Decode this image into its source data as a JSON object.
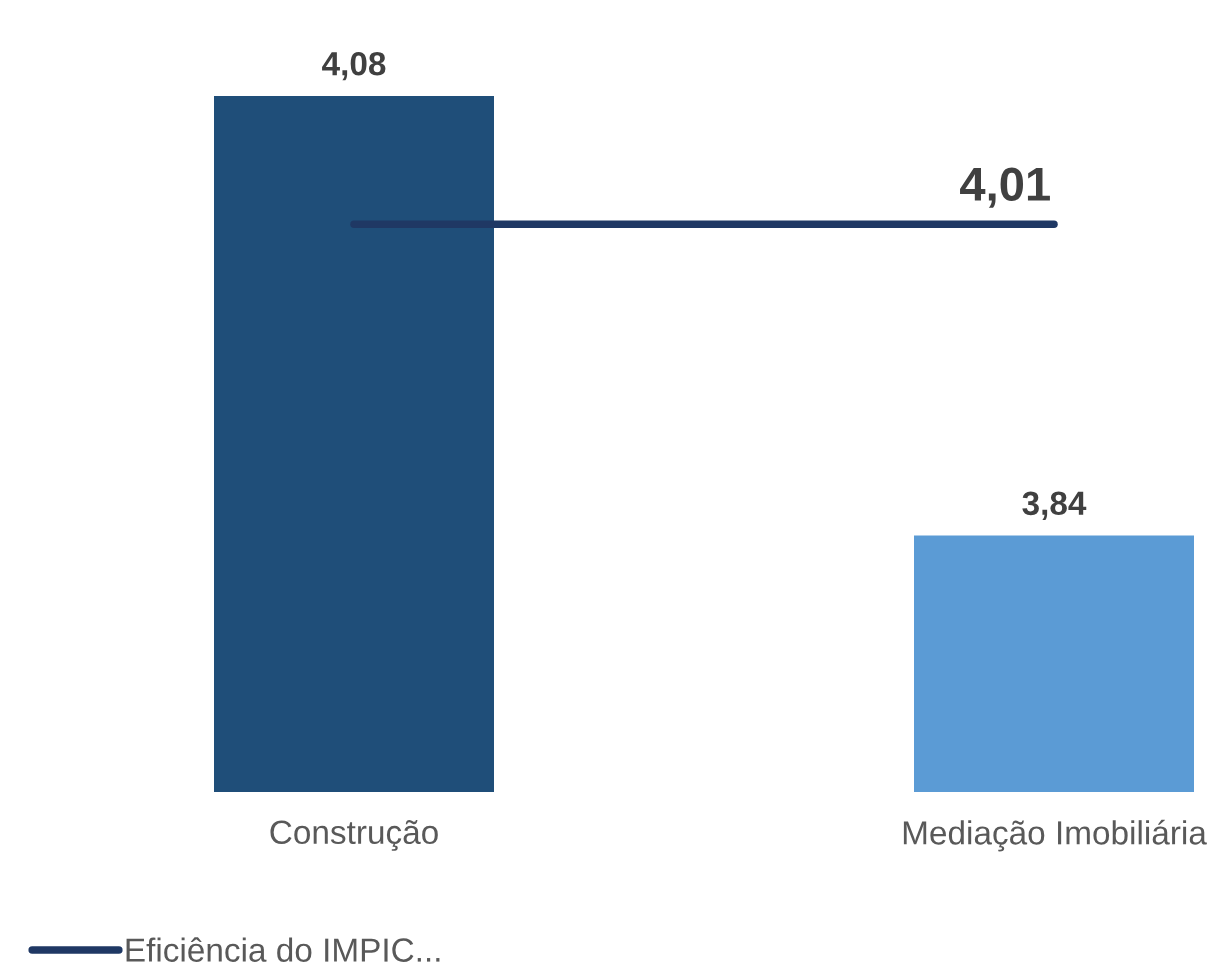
{
  "chart_data": {
    "type": "bar",
    "categories": [
      "Construção",
      "Mediação Imobiliária"
    ],
    "series": [
      {
        "color": "#1f4e79",
        "values": [
          4.08,
          null
        ],
        "value_labels": [
          "4,08",
          null
        ]
      },
      {
        "color": "#5b9bd5",
        "values": [
          null,
          3.84
        ],
        "value_labels": [
          null,
          "3,84"
        ]
      },
      {
        "type": "line",
        "name": "Eficiência do IMPIC...",
        "color": "#1f3864",
        "values": [
          4.01,
          4.01
        ],
        "value_labels": [
          null,
          "4,01"
        ]
      }
    ],
    "ylim": [
      3.7,
      4.08
    ],
    "tick_labels": "x",
    "legend": "bottom left",
    "line_style": "solid"
  }
}
